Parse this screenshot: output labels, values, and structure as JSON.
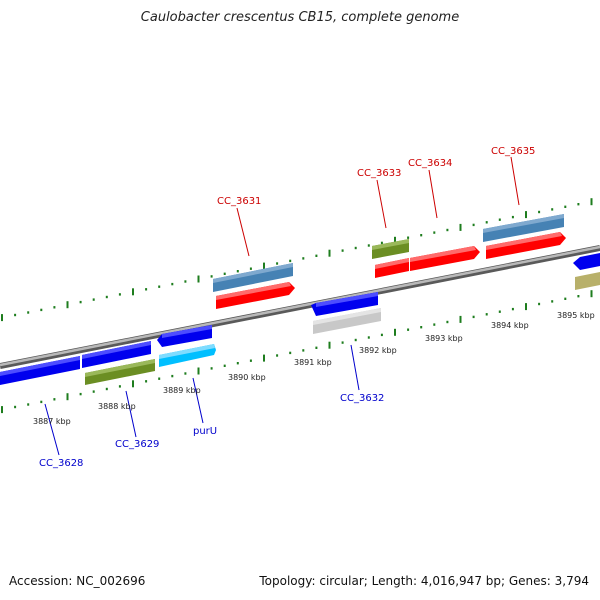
{
  "title": "Caulobacter crescentus CB15, complete genome",
  "footer": {
    "accession": "Accession: NC_002696",
    "summary": "Topology: circular; Length: 4,016,947 bp; Genes: 3,794"
  },
  "colors": {
    "backbone": "#8c8c8c",
    "tick": "#1e7d1e",
    "plus_label": "#cc0000",
    "minus_label": "#0000cc",
    "tick_label": "#222222"
  },
  "kbp_labels": [
    "3887 kbp",
    "3888 kbp",
    "3889 kbp",
    "3890 kbp",
    "3891 kbp",
    "3892 kbp",
    "3893 kbp",
    "3894 kbp",
    "3895 kbp"
  ],
  "gene_labels": {
    "plus": [
      "CC_3631",
      "CC_3633",
      "CC_3634",
      "CC_3635"
    ],
    "minus": [
      "CC_3628",
      "CC_3629",
      "purU",
      "CC_3632"
    ]
  }
}
